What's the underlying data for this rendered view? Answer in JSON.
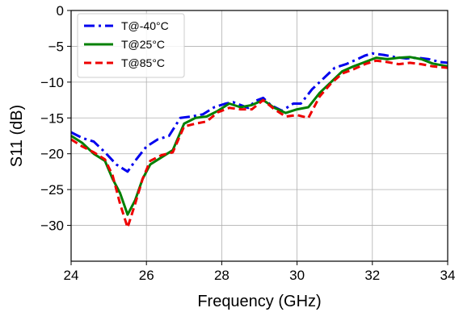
{
  "chart_data": {
    "type": "line",
    "xlabel": "Frequency (GHz)",
    "ylabel": "S11 (dB)",
    "xlim": [
      24,
      34
    ],
    "ylim": [
      -35,
      0
    ],
    "xticks": [
      24,
      26,
      28,
      30,
      32,
      34
    ],
    "yticks": [
      0,
      -5,
      -10,
      -15,
      -20,
      -25,
      -30
    ],
    "xtick_labels": [
      "24",
      "26",
      "28",
      "30",
      "32",
      "34"
    ],
    "ytick_labels": [
      "0",
      "−5",
      "−10",
      "−15",
      "−20",
      "−25",
      "−30"
    ],
    "grid": true,
    "legend_position": "top-left",
    "series": [
      {
        "name": "T@-40°C",
        "color": "#0000ee",
        "style": "dashdot",
        "x": [
          24.0,
          24.3,
          24.6,
          24.9,
          25.2,
          25.5,
          25.7,
          26.0,
          26.3,
          26.6,
          26.9,
          27.2,
          27.5,
          27.8,
          28.1,
          28.3,
          28.5,
          28.7,
          28.9,
          29.1,
          29.3,
          29.6,
          29.9,
          30.1,
          30.4,
          30.7,
          31.0,
          31.3,
          31.6,
          31.8,
          32.0,
          32.3,
          32.6,
          32.9,
          33.2,
          33.5,
          33.8,
          34.0
        ],
        "y": [
          -17.0,
          -17.8,
          -18.3,
          -19.8,
          -21.5,
          -22.5,
          -21.0,
          -19.0,
          -18.0,
          -17.5,
          -15.0,
          -14.8,
          -14.5,
          -13.5,
          -13.0,
          -12.8,
          -13.2,
          -13.6,
          -12.6,
          -12.2,
          -13.2,
          -14.0,
          -13.0,
          -13.0,
          -11.0,
          -9.5,
          -8.0,
          -7.5,
          -6.8,
          -6.3,
          -6.0,
          -6.2,
          -6.5,
          -6.7,
          -6.6,
          -6.8,
          -7.2,
          -7.3
        ]
      },
      {
        "name": "T@25°C",
        "color": "#008000",
        "style": "solid",
        "x": [
          24.0,
          24.3,
          24.6,
          24.9,
          25.1,
          25.3,
          25.5,
          25.7,
          25.9,
          26.1,
          26.4,
          26.7,
          27.0,
          27.3,
          27.6,
          27.9,
          28.2,
          28.5,
          28.8,
          29.1,
          29.4,
          29.7,
          30.0,
          30.3,
          30.6,
          30.9,
          31.2,
          31.5,
          31.8,
          32.1,
          32.4,
          32.7,
          33.0,
          33.3,
          33.6,
          34.0
        ],
        "y": [
          -17.5,
          -18.5,
          -20.0,
          -21.0,
          -23.5,
          -25.5,
          -28.5,
          -26.5,
          -23.5,
          -21.5,
          -20.5,
          -19.5,
          -15.8,
          -15.0,
          -14.8,
          -14.0,
          -13.0,
          -13.5,
          -13.2,
          -12.5,
          -13.6,
          -14.3,
          -13.8,
          -13.5,
          -11.5,
          -10.0,
          -8.5,
          -7.8,
          -7.2,
          -6.6,
          -6.8,
          -6.6,
          -6.5,
          -6.8,
          -7.4,
          -7.8
        ]
      },
      {
        "name": "T@85°C",
        "color": "#ee0000",
        "style": "dashed",
        "x": [
          24.0,
          24.3,
          24.6,
          24.9,
          25.1,
          25.3,
          25.5,
          25.7,
          25.9,
          26.1,
          26.4,
          26.7,
          27.0,
          27.3,
          27.6,
          27.9,
          28.2,
          28.5,
          28.8,
          29.1,
          29.4,
          29.7,
          30.0,
          30.3,
          30.6,
          30.9,
          31.2,
          31.5,
          31.8,
          32.1,
          32.4,
          32.7,
          33.0,
          33.3,
          33.6,
          34.0
        ],
        "y": [
          -18.0,
          -19.0,
          -19.8,
          -20.8,
          -23.0,
          -27.0,
          -30.3,
          -27.0,
          -23.5,
          -21.0,
          -20.2,
          -19.8,
          -16.2,
          -15.8,
          -15.5,
          -14.2,
          -13.6,
          -13.8,
          -13.8,
          -12.5,
          -13.8,
          -14.8,
          -14.6,
          -15.0,
          -12.0,
          -10.2,
          -8.8,
          -8.2,
          -7.5,
          -7.0,
          -7.2,
          -7.5,
          -7.3,
          -7.5,
          -7.8,
          -8.0
        ]
      }
    ]
  }
}
